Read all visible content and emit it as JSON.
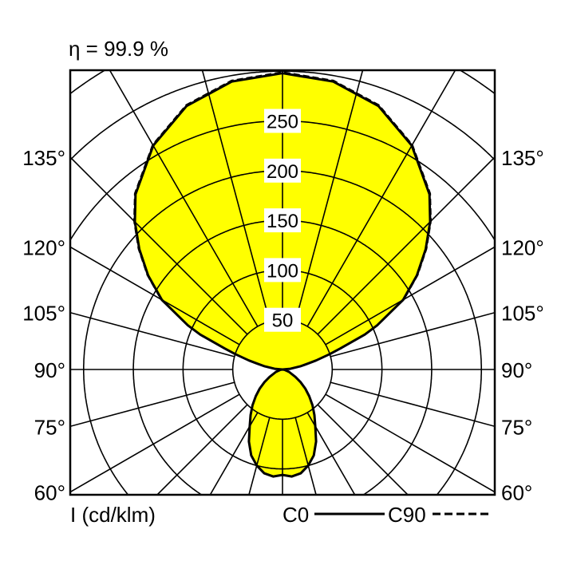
{
  "chart_data": {
    "type": "polar",
    "title": "η = 99.9 %",
    "radial_axis_label": "I (cd/klm)",
    "radial_ticks": [
      50,
      100,
      150,
      200,
      250
    ],
    "radial_max_drawn": 400,
    "angle_ticks": [
      "60°",
      "75°",
      "90°",
      "105°",
      "120°",
      "135°"
    ],
    "angle_values": [
      60,
      75,
      90,
      105,
      120,
      135
    ],
    "angle_step": 15,
    "fill_color": "#ffff00",
    "grid": true,
    "legend": {
      "placement": "bottom-right"
    },
    "series": [
      {
        "name": "C0",
        "style": "solid",
        "angles": [
          0,
          5,
          10,
          15,
          20,
          25,
          30,
          35,
          40,
          45,
          50,
          55,
          60,
          70,
          80,
          90,
          95,
          100,
          103,
          105,
          108,
          110,
          113,
          115,
          120,
          125,
          130,
          135,
          140,
          150,
          160,
          170,
          180
        ],
        "values": [
          106,
          108,
          106,
          100,
          92,
          80,
          66,
          56,
          47,
          38,
          30,
          22,
          15,
          7,
          2,
          0,
          8,
          18,
          26,
          35,
          50,
          62,
          90,
          105,
          140,
          165,
          188,
          210,
          230,
          260,
          282,
          294,
          298
        ]
      },
      {
        "name": "C90",
        "style": "dashed",
        "angles": [
          0,
          5,
          10,
          15,
          20,
          25,
          30,
          35,
          40,
          45,
          50,
          55,
          60,
          70,
          80,
          90,
          95,
          100,
          103,
          105,
          108,
          110,
          113,
          115,
          120,
          125,
          130,
          135,
          140,
          150,
          160,
          170,
          180
        ],
        "values": [
          106,
          108,
          106,
          100,
          92,
          80,
          66,
          56,
          47,
          38,
          30,
          22,
          15,
          7,
          2,
          0,
          8,
          18,
          26,
          35,
          50,
          62,
          90,
          105,
          141,
          166,
          189,
          211,
          231,
          261,
          283,
          295,
          299
        ]
      }
    ]
  }
}
